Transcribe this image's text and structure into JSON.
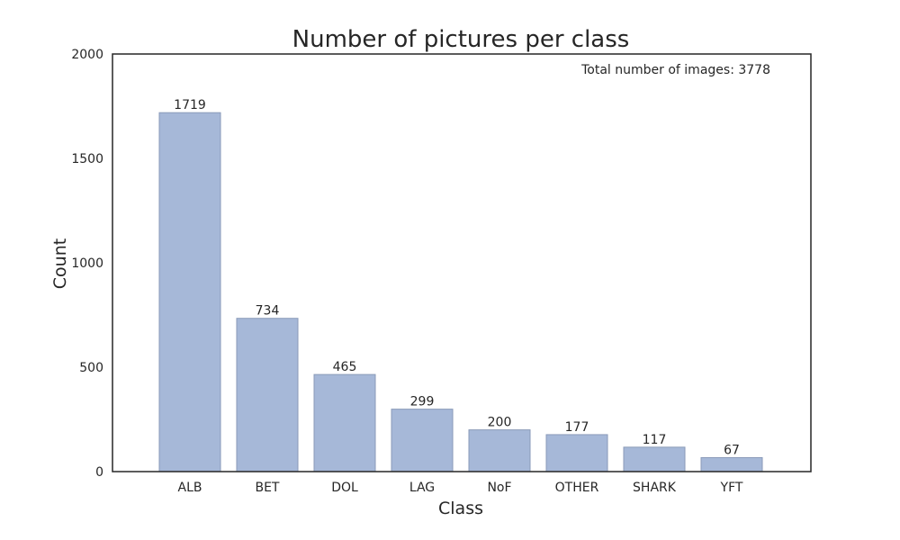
{
  "chart_data": {
    "type": "bar",
    "title": "Number of pictures per class",
    "xlabel": "Class",
    "ylabel": "Count",
    "categories": [
      "ALB",
      "BET",
      "DOL",
      "LAG",
      "NoF",
      "OTHER",
      "SHARK",
      "YFT"
    ],
    "values": [
      1719,
      734,
      465,
      299,
      200,
      177,
      117,
      67
    ],
    "ylim": [
      0,
      2000
    ],
    "yticks": [
      0,
      500,
      1000,
      1500,
      2000
    ],
    "annotation": "Total number of images: 3778",
    "grid": false,
    "colors": {
      "bar_fill": "#a6b8d8",
      "bar_stroke": "#8a9ab8",
      "axis": "#262626"
    }
  }
}
